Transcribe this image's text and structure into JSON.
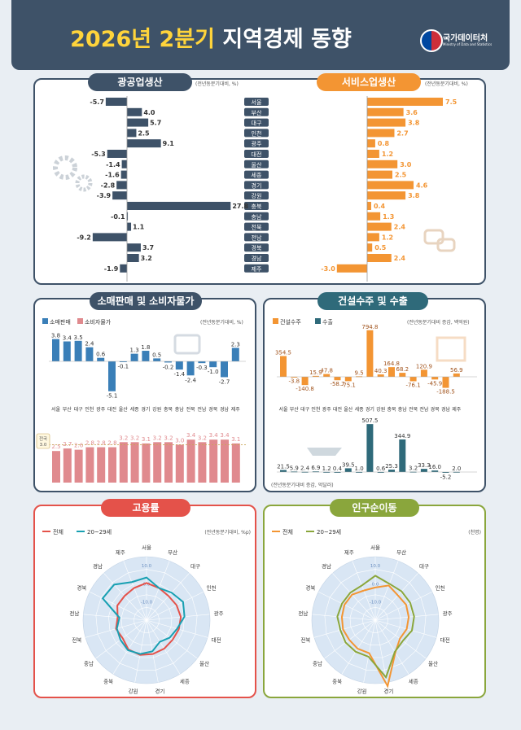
{
  "header": {
    "title_year": "2026년 2분기",
    "title_main": "지역경제 동향",
    "org_name": "국가데이터처",
    "org_en": "Ministry of Data and Statistics"
  },
  "regions": [
    "서울",
    "부산",
    "대구",
    "인천",
    "광주",
    "대전",
    "울산",
    "세종",
    "경기",
    "강원",
    "충북",
    "충남",
    "전북",
    "전남",
    "경북",
    "경남",
    "제주"
  ],
  "colors": {
    "blue": "#3a7fb8",
    "orange": "#f39533",
    "pink": "#e08a8e",
    "teal": "#2f6a7a",
    "red": "#e4524a",
    "green": "#8aa63c",
    "navy": "#3e5268"
  },
  "chart_data": [
    {
      "type": "bar",
      "title": "광공업생산",
      "unit": "(전년동분기대비, %)",
      "categories": [
        "서울",
        "부산",
        "대구",
        "인천",
        "광주",
        "대전",
        "울산",
        "세종",
        "경기",
        "강원",
        "충북",
        "충남",
        "전북",
        "전남",
        "경북",
        "경남",
        "제주"
      ],
      "values": [
        -5.7,
        4.0,
        5.7,
        2.5,
        9.1,
        -5.3,
        -1.4,
        -1.6,
        -2.8,
        -3.9,
        27.8,
        -0.1,
        1.1,
        -9.2,
        3.7,
        3.2,
        -1.9
      ],
      "labels": [
        "-5.7",
        "4.0",
        "5.7",
        "2.5",
        "9.1",
        "-5.3",
        "-1.4",
        "-1.6",
        "-2.8",
        "-3.9",
        "27.8",
        "-0.1",
        "1.1",
        "-9.2",
        "3.7",
        "3.2",
        "-1.9"
      ]
    },
    {
      "type": "bar",
      "title": "서비스업생산",
      "unit": "(전년동분기대비, %)",
      "categories": [
        "서울",
        "부산",
        "대구",
        "인천",
        "광주",
        "대전",
        "울산",
        "세종",
        "경기",
        "강원",
        "충북",
        "충남",
        "전북",
        "전남",
        "경북",
        "경남",
        "제주"
      ],
      "values": [
        7.5,
        3.6,
        3.8,
        2.7,
        0.8,
        1.2,
        3.0,
        2.5,
        4.6,
        3.8,
        0.4,
        1.3,
        2.4,
        1.2,
        0.5,
        2.4,
        -3.0
      ],
      "labels": [
        "7.5",
        "3.6",
        "3.8",
        "2.7",
        "0.8",
        "1.2",
        "3.0",
        "2.5",
        "4.6",
        "3.8",
        "0.4",
        "1.3",
        "2.4",
        "1.2",
        "0.5",
        "2.4",
        "-3.0"
      ]
    },
    {
      "type": "bar",
      "title": "소매판매 및 소비자물가",
      "unit": "(전년동분기대비, %)",
      "categories": [
        "서울",
        "부산",
        "대구",
        "인천",
        "광주",
        "대전",
        "울산",
        "세종",
        "경기",
        "강원",
        "충북",
        "충남",
        "전북",
        "전남",
        "경북",
        "경남",
        "제주"
      ],
      "series": [
        {
          "name": "소매판매",
          "values": [
            3.8,
            3.4,
            3.5,
            2.4,
            0.6,
            -5.1,
            -0.1,
            1.3,
            1.8,
            0.5,
            -0.2,
            -1.4,
            -2.4,
            -0.3,
            -1.0,
            -2.7,
            2.3
          ],
          "labels": [
            "3.8",
            "3.4",
            "3.5",
            "2.4",
            "0.6",
            "-5.1",
            "-0.1",
            "1.3",
            "1.8",
            "0.5",
            "-0.2",
            "-1.4",
            "-2.4",
            "-0.3",
            "-1.0",
            "-2.7",
            "2.3"
          ]
        },
        {
          "name": "소비자물가",
          "values": [
            2.5,
            2.7,
            2.6,
            2.8,
            2.8,
            2.8,
            3.2,
            3.2,
            3.1,
            3.2,
            3.2,
            3.0,
            3.4,
            3.2,
            3.4,
            3.4,
            3.1
          ],
          "labels": [
            "2.5",
            "2.7",
            "2.6",
            "2.8",
            "2.8",
            "2.8",
            "3.2",
            "3.2",
            "3.1",
            "3.2",
            "3.2",
            "3.0",
            "3.4",
            "3.2",
            "3.4",
            "3.4",
            "3.1"
          ]
        }
      ],
      "reference": {
        "label": "전국",
        "value": 3.0,
        "value_label": "3.0"
      }
    },
    {
      "type": "bar",
      "title": "건설수주 및 수출",
      "categories": [
        "서울",
        "부산",
        "대구",
        "인천",
        "광주",
        "대전",
        "울산",
        "세종",
        "경기",
        "강원",
        "충북",
        "충남",
        "전북",
        "전남",
        "경북",
        "경남",
        "제주"
      ],
      "series": [
        {
          "name": "건설수주",
          "unit": "(전년동분기대비 증감, 백억원)",
          "values": [
            354.5,
            -3.8,
            -140.8,
            15.9,
            47.8,
            -58.7,
            -75.1,
            9.5,
            794.8,
            40.3,
            164.8,
            68.2,
            -76.1,
            120.9,
            -45.9,
            -188.5,
            56.9
          ],
          "labels": [
            "354.5",
            "-3.8",
            "-140.8",
            "15.9",
            "47.8",
            "-58.7",
            "-75.1",
            "9.5",
            "794.8",
            "40.3",
            "164.8",
            "68.2",
            "-76.1",
            "120.9",
            "-45.9",
            "-188.5",
            "56.9"
          ]
        },
        {
          "name": "수출",
          "unit": "(전년동분기대비 증감, 억달러)",
          "values": [
            21.5,
            5.9,
            2.4,
            6.9,
            1.2,
            0.4,
            39.5,
            1.0,
            507.5,
            0.6,
            25.3,
            344.9,
            3.2,
            33.3,
            16.0,
            -5.2,
            2.0
          ],
          "labels": [
            "21.5",
            "5.9",
            "2.4",
            "6.9",
            "1.2",
            "0.4",
            "39.5",
            "1.0",
            "507.5",
            "0.6",
            "25.3",
            "344.9",
            "3.2",
            "33.3",
            "16.0",
            "-5.2",
            "2.0"
          ]
        }
      ]
    },
    {
      "type": "radar",
      "title": "고용률",
      "unit": "(전년동분기대비, %p)",
      "axes": [
        "서울",
        "부산",
        "대구",
        "인천",
        "광주",
        "대전",
        "울산",
        "세종",
        "경기",
        "강원",
        "충북",
        "충남",
        "전북",
        "전남",
        "경북",
        "경남",
        "제주"
      ],
      "rings": [
        -10,
        0,
        10
      ],
      "ring_labels": [
        "-10.0",
        "0.0",
        "10.0"
      ],
      "series": [
        {
          "name": "전체",
          "values": [
            0.5,
            -1.0,
            -2.0,
            -1.5,
            -1.0,
            -1.5,
            -2.0,
            -1.5,
            -1.0,
            -0.5,
            -1.0,
            -3.5,
            -2.5,
            -4.0,
            -2.0,
            -2.0,
            -1.0
          ]
        },
        {
          "name": "20~29세",
          "values": [
            3.5,
            -1.0,
            0.5,
            2.5,
            1.0,
            -2.5,
            -4.0,
            -6.0,
            -2.5,
            -1.0,
            -0.5,
            -2.0,
            -3.0,
            -5.0,
            7.0,
            6.5,
            2.5
          ]
        }
      ]
    },
    {
      "type": "radar",
      "title": "인구순이동",
      "unit": "(천명)",
      "axes": [
        "서울",
        "부산",
        "대구",
        "인천",
        "광주",
        "대전",
        "울산",
        "세종",
        "경기",
        "강원",
        "충북",
        "충남",
        "전북",
        "전남",
        "경북",
        "경남",
        "제주"
      ],
      "rings": [
        -10,
        0,
        10
      ],
      "ring_labels": [
        "-10.0",
        "0.0",
        "10.0"
      ],
      "series": [
        {
          "name": "전체",
          "values": [
            -2.0,
            0.5,
            -1.5,
            -1.0,
            -1.5,
            -2.0,
            -3.0,
            1.0,
            17.0,
            -1.5,
            -1.5,
            -2.0,
            -1.5,
            -1.5,
            -1.0,
            -1.0,
            -2.5
          ]
        },
        {
          "name": "20~29세",
          "values": [
            4.5,
            1.5,
            1.5,
            1.5,
            1.5,
            1.0,
            -1.0,
            0.5,
            12.0,
            0.5,
            0.5,
            0.5,
            0.0,
            1.0,
            0.5,
            0.5,
            0.5
          ]
        }
      ]
    }
  ]
}
